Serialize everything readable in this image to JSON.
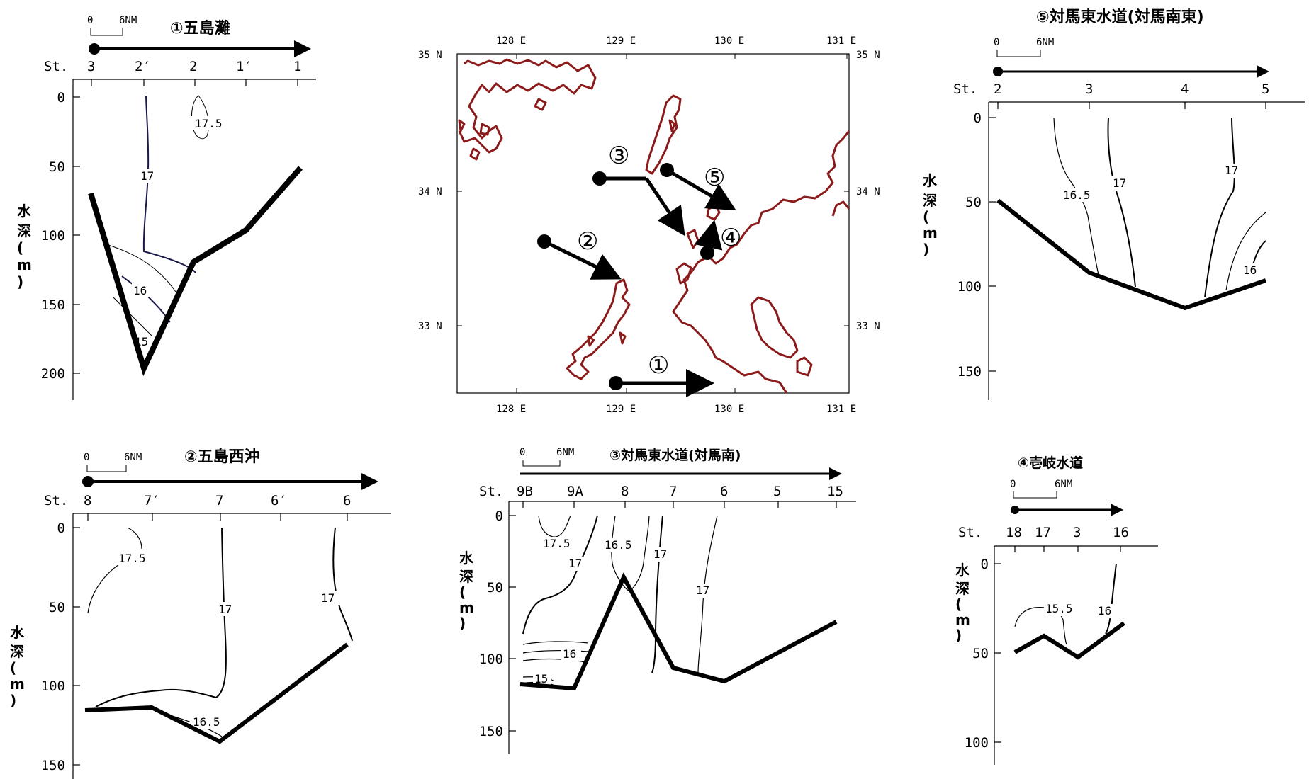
{
  "depth_axis_label": [
    "水",
    "深",
    "(",
    "m",
    ")"
  ],
  "scale_bar": {
    "zero": "0",
    "length": "6NM"
  },
  "station_prefix": "St.",
  "map": {
    "lon_labels": [
      "128 E",
      "129 E",
      "130 E",
      "131 E"
    ],
    "lat_labels": [
      "35 N",
      "34 N",
      "33 N"
    ],
    "transect_markers": [
      "①",
      "②",
      "③",
      "④",
      "⑤"
    ],
    "coast_color": "#8b1a1a"
  },
  "panels": {
    "p1": {
      "title": "①五島灘",
      "stations": [
        "3",
        "2′",
        "2",
        "1′",
        "1"
      ],
      "depth_ticks": [
        "0",
        "50",
        "100",
        "150",
        "200"
      ],
      "contour_labels": [
        "17.5",
        "17",
        "16",
        "15"
      ]
    },
    "p2": {
      "title": "②五島西沖",
      "stations": [
        "8",
        "7′",
        "7",
        "6′",
        "6"
      ],
      "depth_ticks": [
        "0",
        "50",
        "100",
        "150"
      ],
      "contour_labels": [
        "17.5",
        "17",
        "17",
        "16.5"
      ]
    },
    "p3": {
      "title": "③対馬東水道(対馬南)",
      "stations": [
        "9B",
        "9A",
        "8",
        "7",
        "6",
        "5",
        "15"
      ],
      "depth_ticks": [
        "0",
        "50",
        "100",
        "150"
      ],
      "contour_labels": [
        "17.5",
        "17",
        "16.5",
        "17",
        "17",
        "16",
        "15"
      ]
    },
    "p4": {
      "title": "④壱岐水道",
      "stations": [
        "18",
        "17",
        "3",
        "16"
      ],
      "depth_ticks": [
        "0",
        "50",
        "100"
      ],
      "contour_labels": [
        "15.5",
        "16"
      ]
    },
    "p5": {
      "title": "⑤対馬東水道(対馬南東)",
      "stations": [
        "2",
        "3",
        "4",
        "5"
      ],
      "depth_ticks": [
        "0",
        "50",
        "100",
        "150"
      ],
      "contour_labels": [
        "16.5",
        "17",
        "17",
        "16"
      ]
    }
  }
}
